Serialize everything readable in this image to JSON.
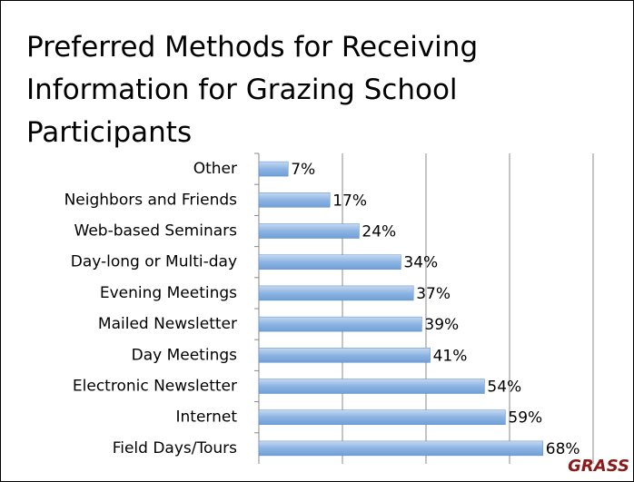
{
  "chart_data": {
    "type": "bar",
    "orientation": "horizontal",
    "title": "Preferred Methods for Receiving Information for Grazing School Participants",
    "categories": [
      "Other",
      "Neighbors and Friends",
      "Web-based Seminars",
      "Day-long or Multi-day",
      "Evening Meetings",
      "Mailed Newsletter",
      "Day Meetings",
      "Electronic Newsletter",
      "Internet",
      "Field Days/Tours"
    ],
    "values": [
      7,
      17,
      24,
      34,
      37,
      39,
      41,
      54,
      59,
      68
    ],
    "value_labels": [
      "7%",
      "17%",
      "24%",
      "34%",
      "37%",
      "39%",
      "41%",
      "54%",
      "59%",
      "68%"
    ],
    "color": "#8db4e2",
    "xlim": [
      0,
      80
    ],
    "xticks": [
      0,
      20,
      40,
      60,
      80
    ],
    "grid": true
  },
  "logo": "GRASS"
}
